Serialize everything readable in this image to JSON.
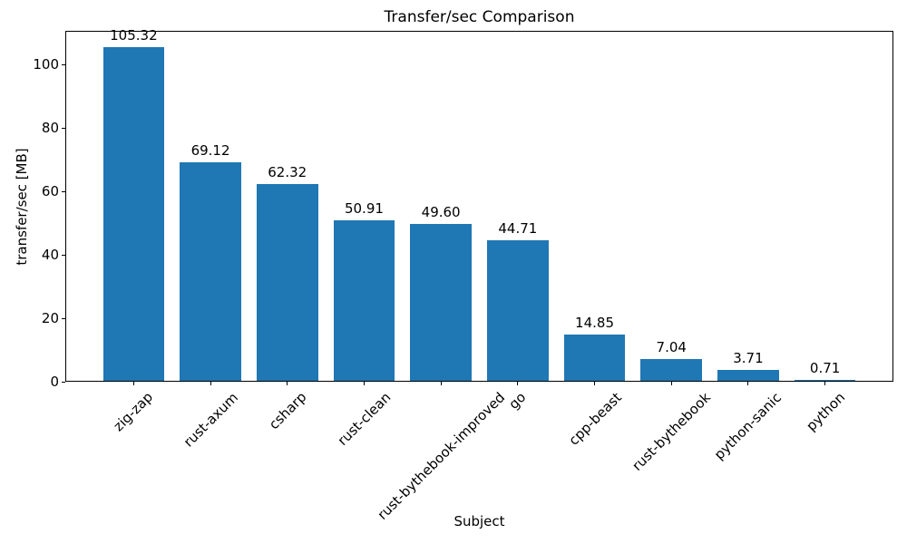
{
  "chart_data": {
    "type": "bar",
    "title": "Transfer/sec Comparison",
    "xlabel": "Subject",
    "ylabel": "transfer/sec [MB]",
    "categories": [
      "zig-zap",
      "rust-axum",
      "csharp",
      "rust-clean",
      "rust-bythebook-improved",
      "go",
      "cpp-beast",
      "rust-bythebook",
      "python-sanic",
      "python"
    ],
    "values": [
      105.32,
      69.12,
      62.32,
      50.91,
      49.6,
      44.71,
      14.85,
      7.04,
      3.71,
      0.71
    ],
    "value_labels": [
      "105.32",
      "69.12",
      "62.32",
      "50.91",
      "49.60",
      "44.71",
      "14.85",
      "7.04",
      "3.71",
      "0.71"
    ],
    "yticks": [
      0,
      20,
      40,
      60,
      80,
      100
    ],
    "ylim": [
      0,
      110.59
    ],
    "bar_color": "#1f77b4",
    "bar_width_fraction": 0.8,
    "x_label_rotation_deg": 45,
    "grid": false,
    "legend": "none"
  }
}
